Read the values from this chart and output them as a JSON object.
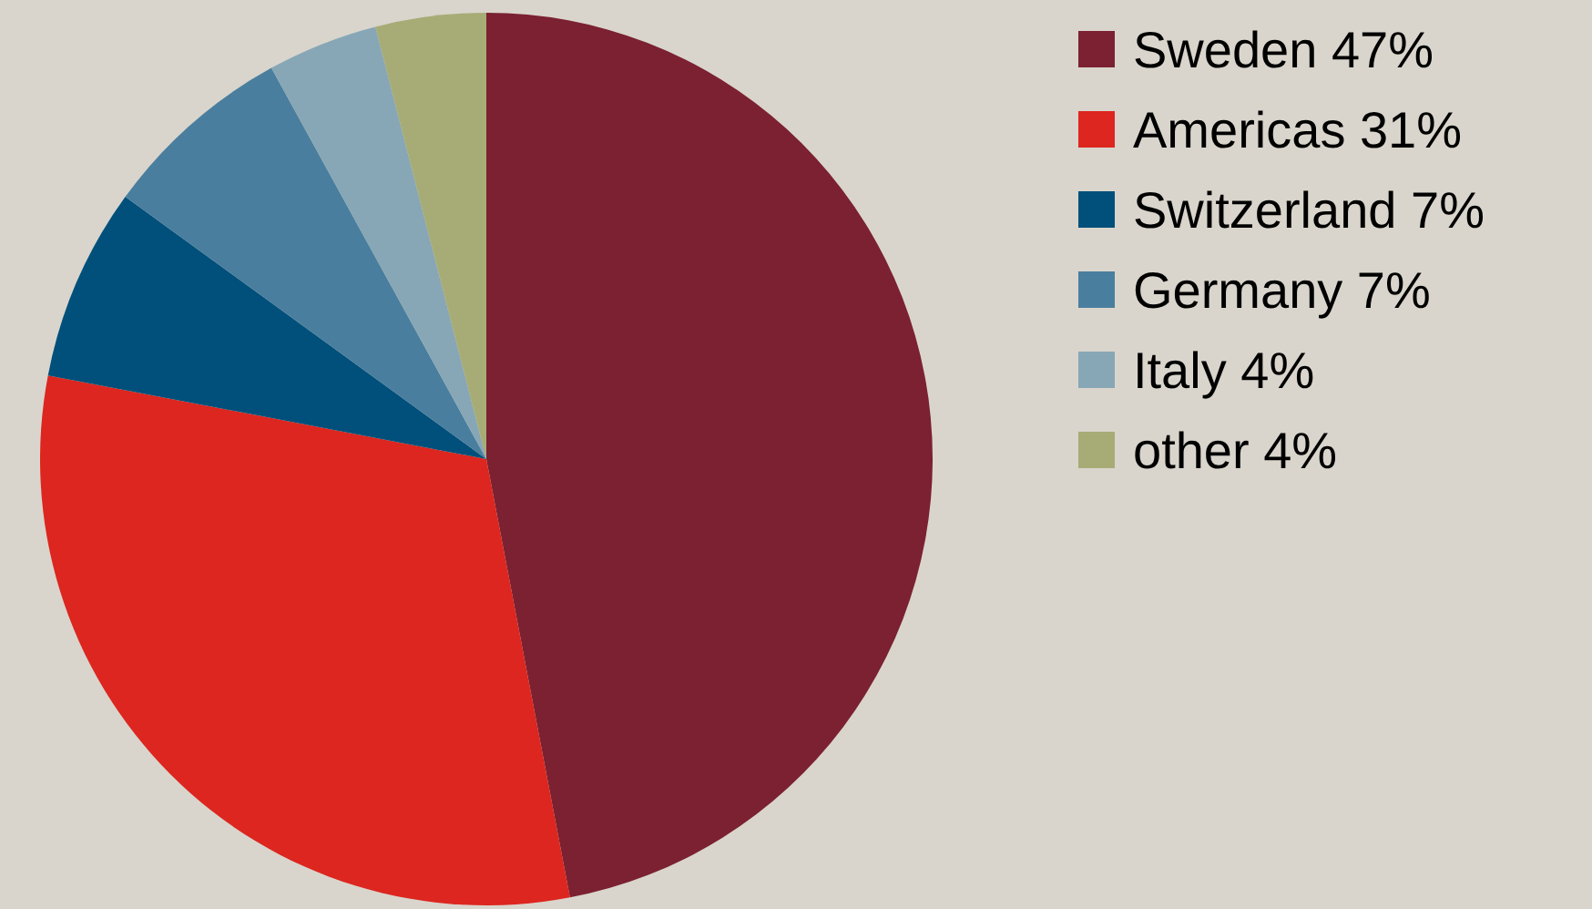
{
  "chart_data": {
    "type": "pie",
    "categories": [
      "Sweden",
      "Americas",
      "Switzerland",
      "Germany",
      "Italy",
      "other"
    ],
    "values": [
      47,
      31,
      7,
      7,
      4,
      4
    ],
    "value_labels": [
      "47%",
      "31%",
      "7%",
      "7%",
      "4%",
      "4%"
    ],
    "colors": [
      "#7b2131",
      "#dc261f",
      "#00507b",
      "#4a7e9e",
      "#87a7b6",
      "#a7ac76"
    ],
    "legend": "right"
  }
}
